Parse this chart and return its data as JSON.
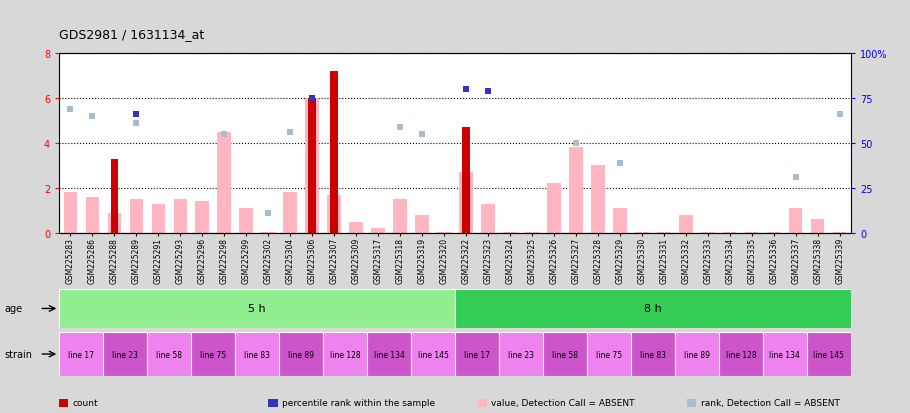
{
  "title": "GDS2981 / 1631134_at",
  "samples": [
    "GSM225283",
    "GSM225286",
    "GSM225288",
    "GSM225289",
    "GSM225291",
    "GSM225293",
    "GSM225296",
    "GSM225298",
    "GSM225299",
    "GSM225302",
    "GSM225304",
    "GSM225306",
    "GSM225307",
    "GSM225309",
    "GSM225317",
    "GSM225318",
    "GSM225319",
    "GSM225320",
    "GSM225322",
    "GSM225323",
    "GSM225324",
    "GSM225325",
    "GSM225326",
    "GSM225327",
    "GSM225328",
    "GSM225329",
    "GSM225330",
    "GSM225331",
    "GSM225332",
    "GSM225333",
    "GSM225334",
    "GSM225335",
    "GSM225336",
    "GSM225337",
    "GSM225338",
    "GSM225339"
  ],
  "count_values": [
    0,
    0,
    3.3,
    0,
    0,
    0,
    0,
    0,
    0,
    0,
    0,
    6.0,
    7.2,
    0,
    0,
    0,
    0,
    0,
    4.7,
    0,
    0,
    0,
    0,
    0,
    0,
    0,
    0,
    0,
    0,
    0,
    0,
    0,
    0,
    0,
    0,
    0
  ],
  "absent_value": [
    1.8,
    1.6,
    0.9,
    1.5,
    1.3,
    1.5,
    1.4,
    4.5,
    1.1,
    0.05,
    1.8,
    6.0,
    1.7,
    0.5,
    0.2,
    1.5,
    0.8,
    0.05,
    2.7,
    1.3,
    0.05,
    0.05,
    2.2,
    3.8,
    3.0,
    1.1,
    0.05,
    0.05,
    0.8,
    0.05,
    0.05,
    0.05,
    0.05,
    1.1,
    0.6,
    0.05
  ],
  "rank_absent": [
    5.5,
    5.2,
    null,
    4.9,
    null,
    null,
    null,
    4.4,
    null,
    0.9,
    4.5,
    null,
    null,
    null,
    null,
    4.7,
    4.4,
    null,
    null,
    null,
    null,
    null,
    null,
    4.0,
    null,
    3.1,
    null,
    null,
    null,
    null,
    null,
    null,
    null,
    2.5,
    null,
    5.3
  ],
  "percentile_rank": [
    null,
    null,
    null,
    5.3,
    null,
    null,
    null,
    null,
    null,
    null,
    null,
    6.0,
    null,
    null,
    null,
    null,
    null,
    null,
    6.4,
    6.3,
    null,
    null,
    null,
    null,
    null,
    null,
    null,
    null,
    null,
    null,
    null,
    null,
    null,
    null,
    null,
    null
  ],
  "age_groups": [
    {
      "label": "5 h",
      "start": 0,
      "end": 18,
      "color": "#90EE90"
    },
    {
      "label": "8 h",
      "start": 18,
      "end": 36,
      "color": "#33CC55"
    }
  ],
  "strain_groups": [
    {
      "label": "line 17",
      "start": 0,
      "end": 2,
      "color": "#EE82EE"
    },
    {
      "label": "line 23",
      "start": 2,
      "end": 4,
      "color": "#CC55CC"
    },
    {
      "label": "line 58",
      "start": 4,
      "end": 6,
      "color": "#EE82EE"
    },
    {
      "label": "line 75",
      "start": 6,
      "end": 8,
      "color": "#CC55CC"
    },
    {
      "label": "line 83",
      "start": 8,
      "end": 10,
      "color": "#EE82EE"
    },
    {
      "label": "line 89",
      "start": 10,
      "end": 12,
      "color": "#CC55CC"
    },
    {
      "label": "line 128",
      "start": 12,
      "end": 14,
      "color": "#EE82EE"
    },
    {
      "label": "line 134",
      "start": 14,
      "end": 16,
      "color": "#CC55CC"
    },
    {
      "label": "line 145",
      "start": 16,
      "end": 18,
      "color": "#EE82EE"
    },
    {
      "label": "line 17",
      "start": 18,
      "end": 20,
      "color": "#CC55CC"
    },
    {
      "label": "line 23",
      "start": 20,
      "end": 22,
      "color": "#EE82EE"
    },
    {
      "label": "line 58",
      "start": 22,
      "end": 24,
      "color": "#CC55CC"
    },
    {
      "label": "line 75",
      "start": 24,
      "end": 26,
      "color": "#EE82EE"
    },
    {
      "label": "line 83",
      "start": 26,
      "end": 28,
      "color": "#CC55CC"
    },
    {
      "label": "line 89",
      "start": 28,
      "end": 30,
      "color": "#EE82EE"
    },
    {
      "label": "line 128",
      "start": 30,
      "end": 32,
      "color": "#CC55CC"
    },
    {
      "label": "line 134",
      "start": 32,
      "end": 34,
      "color": "#EE82EE"
    },
    {
      "label": "line 145",
      "start": 34,
      "end": 36,
      "color": "#CC55CC"
    }
  ],
  "ylim": [
    0,
    8
  ],
  "yticks": [
    0,
    2,
    4,
    6,
    8
  ],
  "y2ticks": [
    0,
    25,
    50,
    75,
    100
  ],
  "bar_color_count": "#CC0000",
  "bar_color_absent": "#FFB6C1",
  "dot_color_rank_absent": "#AABBCC",
  "dot_color_percentile": "#3333BB",
  "background_color": "#D8D8D8",
  "plot_bg": "#FFFFFF",
  "label_age": "age",
  "label_strain": "strain"
}
